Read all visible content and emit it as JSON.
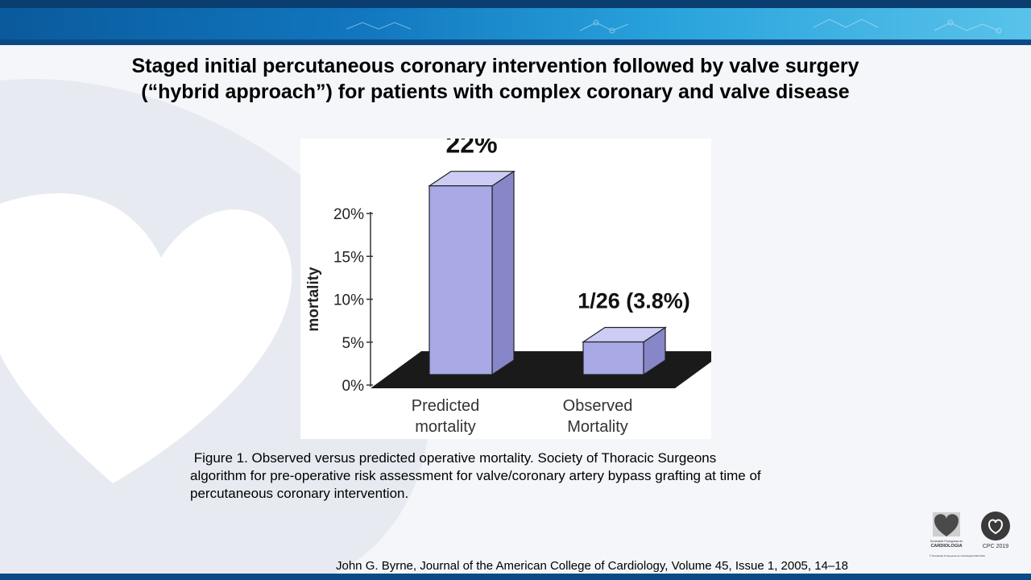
{
  "slide": {
    "title_line1": "Staged initial percutaneous coronary intervention followed by valve surgery",
    "title_line2": "(“hybrid approach”) for patients with complex coronary and valve disease",
    "caption_line1": " Figure 1. Observed versus predicted operative mortality. Society of Thoracic Surgeons",
    "caption_line2": "algorithm for pre-operative risk assessment for valve/coronary artery bypass grafting at time of",
    "caption_line3": "percutaneous coronary intervention.",
    "citation": "John G. Byrne, Journal of the American College of Cardiology, Volume 45, Issue 1, 2005, 14–18"
  },
  "logos": {
    "spc_line1": "Sociedade Portuguesa de",
    "spc_line2": "CARDIOLOGIA",
    "cpc_label": "CPC 2019",
    "copyright": "© Sociedade Portuguesa de Cardiologia 2018-2019"
  },
  "chart_data": {
    "type": "bar",
    "style": "3d",
    "categories": [
      [
        "Predicted",
        "mortality"
      ],
      [
        "Observed",
        "Mortality"
      ]
    ],
    "values": [
      22,
      3.8
    ],
    "data_labels": [
      "22%",
      "1/26 (3.8%)"
    ],
    "ylabel": "mortality",
    "ylim": [
      0,
      20
    ],
    "yticks": [
      "0%",
      "5%",
      "10%",
      "15%",
      "20%"
    ],
    "grid": false,
    "legend": "none",
    "colors": {
      "bar_front": "#a9a9e6",
      "bar_top": "#ccccf5",
      "bar_side": "#8686c8",
      "floor": "#1a1a1a"
    }
  }
}
